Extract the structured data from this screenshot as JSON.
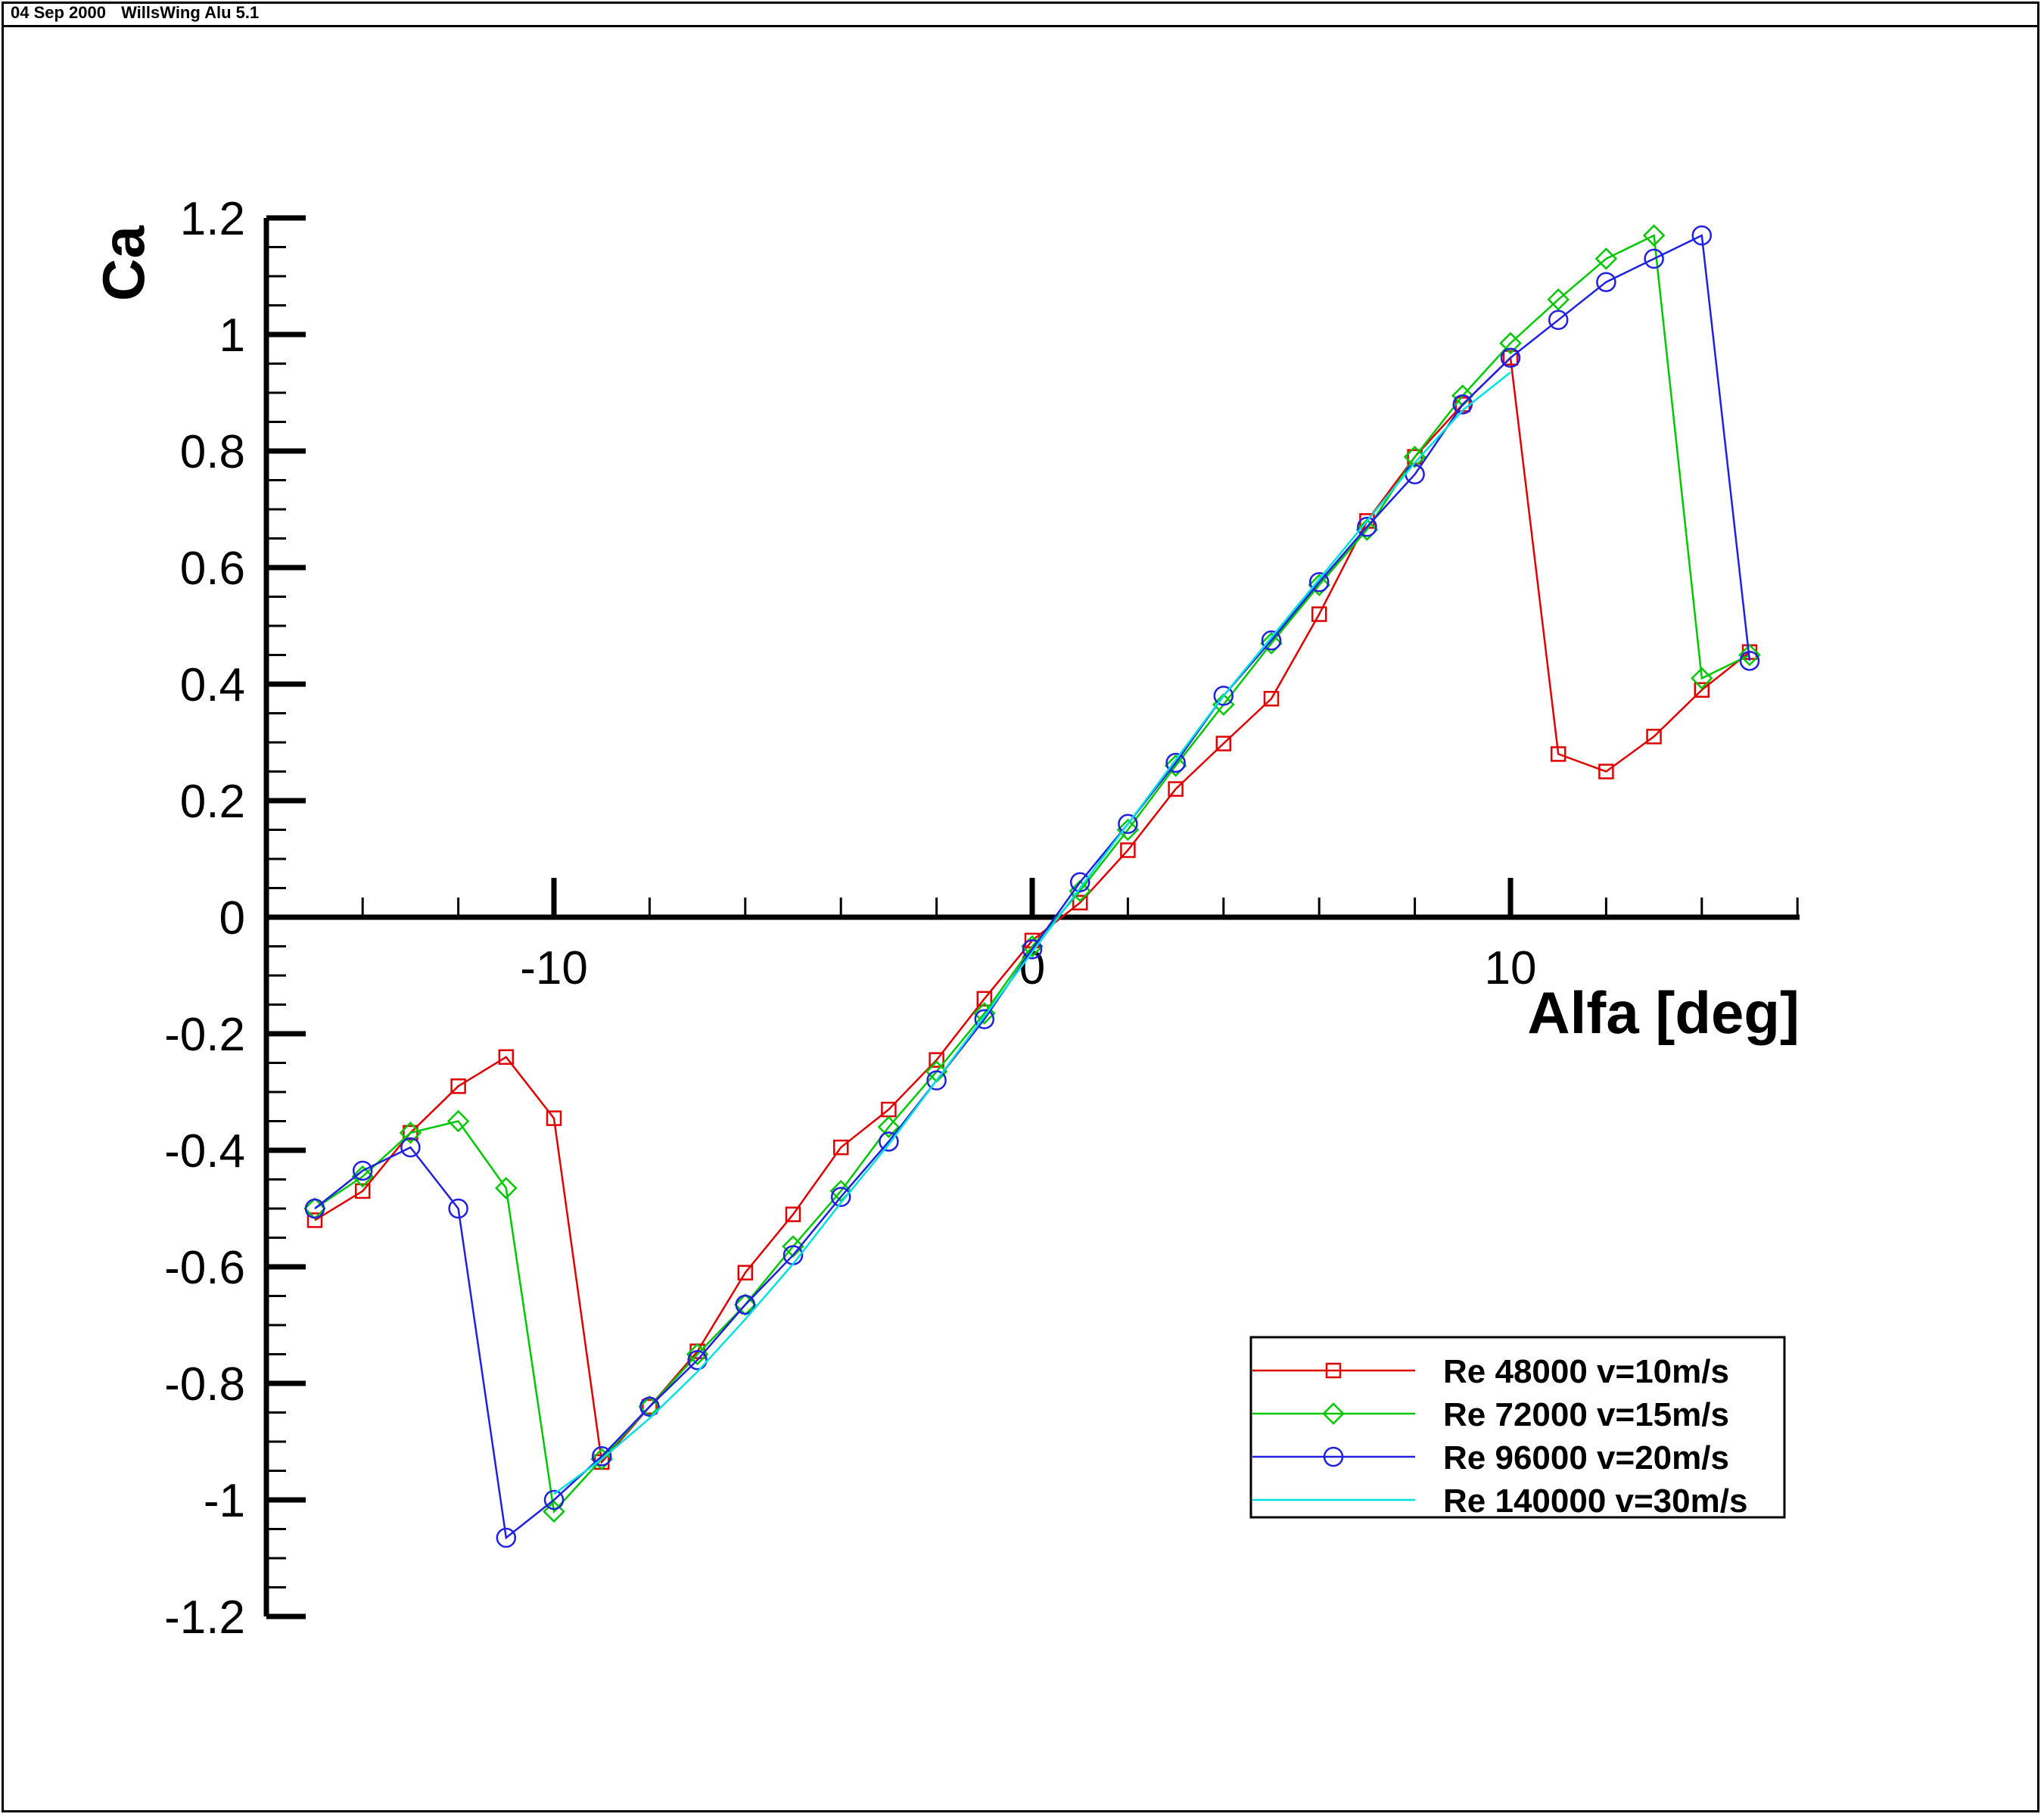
{
  "header": {
    "date": "04 Sep 2000",
    "software": "WillsWing Alu 5.1"
  },
  "chart_data": {
    "type": "line",
    "xlabel": "Alfa [deg]",
    "ylabel": "Ca",
    "xlim": [
      -15.5,
      16.0
    ],
    "ylim": [
      -1.2,
      1.2
    ],
    "x_ticks": [
      -10,
      0,
      10
    ],
    "y_ticks": [
      -1.2,
      -1,
      -0.8,
      -0.6,
      -0.4,
      -0.2,
      0,
      0.2,
      0.4,
      0.6,
      0.8,
      1,
      1.2
    ],
    "x_tick_labels": [
      "-10",
      "0",
      "10"
    ],
    "y_tick_labels": [
      "-1.2",
      "-1",
      "-0.8",
      "-0.6",
      "-0.4",
      "-0.2",
      "0",
      "0.2",
      "0.4",
      "0.6",
      "0.8",
      "1",
      "1.2"
    ],
    "legend_position": "bottom-right",
    "series": [
      {
        "name": "Re 48000 v=10m/s",
        "color": "#e00000",
        "marker": "square",
        "x": [
          -15,
          -14,
          -13,
          -12,
          -11,
          -10,
          -9,
          -8,
          -7,
          -6,
          -5,
          -4,
          -3,
          -2,
          -1,
          0,
          1,
          2,
          3,
          4,
          5,
          6,
          7,
          8,
          9,
          10,
          11,
          12,
          13,
          14,
          15
        ],
        "y": [
          -0.52,
          -0.47,
          -0.37,
          -0.29,
          -0.24,
          -0.345,
          -0.935,
          -0.84,
          -0.745,
          -0.61,
          -0.51,
          -0.395,
          -0.33,
          -0.245,
          -0.14,
          -0.04,
          0.025,
          0.115,
          0.22,
          0.298,
          0.375,
          0.52,
          0.68,
          0.79,
          0.88,
          0.96,
          0.28,
          0.25,
          0.31,
          0.39,
          0.455
        ]
      },
      {
        "name": "Re 72000 v=15m/s",
        "color": "#00c800",
        "marker": "diamond",
        "x": [
          -15,
          -14,
          -13,
          -12,
          -11,
          -10,
          -9,
          -8,
          -7,
          -6,
          -5,
          -4,
          -3,
          -2,
          -1,
          0,
          1,
          2,
          3,
          4,
          5,
          6,
          7,
          8,
          9,
          10,
          11,
          12,
          13,
          14,
          15
        ],
        "y": [
          -0.5,
          -0.445,
          -0.37,
          -0.35,
          -0.465,
          -1.02,
          -0.93,
          -0.84,
          -0.75,
          -0.665,
          -0.565,
          -0.47,
          -0.36,
          -0.265,
          -0.165,
          -0.05,
          0.045,
          0.15,
          0.26,
          0.365,
          0.47,
          0.57,
          0.665,
          0.79,
          0.895,
          0.985,
          1.06,
          1.13,
          1.17,
          0.41,
          0.45
        ]
      },
      {
        "name": "Re 96000 v=20m/s",
        "color": "#2020e0",
        "marker": "circle",
        "x": [
          -15,
          -14,
          -13,
          -12,
          -11,
          -10,
          -9,
          -8,
          -7,
          -6,
          -5,
          -4,
          -3,
          -2,
          -1,
          0,
          1,
          2,
          3,
          4,
          5,
          6,
          7,
          8,
          9,
          10,
          11,
          12,
          13,
          14,
          15
        ],
        "y": [
          -0.5,
          -0.435,
          -0.395,
          -0.5,
          -1.065,
          -1.0,
          -0.925,
          -0.84,
          -0.76,
          -0.665,
          -0.58,
          -0.48,
          -0.385,
          -0.28,
          -0.175,
          -0.055,
          0.06,
          0.16,
          0.265,
          0.38,
          0.475,
          0.575,
          0.67,
          0.76,
          0.88,
          0.96,
          1.025,
          1.09,
          1.13,
          1.17,
          0.44
        ]
      },
      {
        "name": "Re 140000 v=30m/s",
        "color": "#00e0e0",
        "marker": "none",
        "x": [
          -10,
          -9,
          -8,
          -7,
          -6,
          -5,
          -4,
          -3,
          -2,
          -1,
          0,
          1,
          2,
          3,
          4,
          5,
          6,
          7,
          8,
          9,
          10
        ],
        "y": [
          -0.99,
          -0.93,
          -0.86,
          -0.78,
          -0.69,
          -0.595,
          -0.49,
          -0.39,
          -0.28,
          -0.17,
          -0.06,
          0.05,
          0.16,
          0.27,
          0.38,
          0.48,
          0.58,
          0.68,
          0.78,
          0.87,
          0.935
        ]
      }
    ]
  }
}
